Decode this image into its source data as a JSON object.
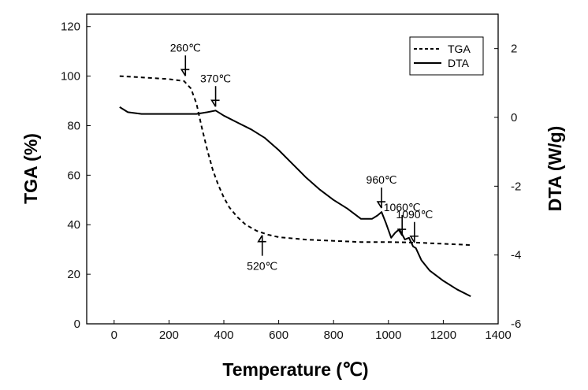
{
  "chart_data": {
    "type": "line",
    "xlabel": "Temperature (℃)",
    "ylabel_left": "TGA (%)",
    "ylabel_right": "DTA (W/g)",
    "xlim": [
      -100,
      1400
    ],
    "ylim_left": [
      0,
      125
    ],
    "ylim_right": [
      -6,
      3
    ],
    "x_ticks": [
      0,
      200,
      400,
      600,
      800,
      1000,
      1200,
      1400
    ],
    "y_left_ticks": [
      0,
      20,
      40,
      60,
      80,
      100,
      120
    ],
    "y_right_ticks": [
      -6,
      -4,
      -2,
      0,
      2
    ],
    "legend_position": "top-right",
    "series": [
      {
        "name": "TGA",
        "axis": "left",
        "style": "dashed",
        "x": [
          20,
          100,
          200,
          255,
          280,
          300,
          320,
          340,
          360,
          380,
          400,
          420,
          450,
          480,
          520,
          560,
          600,
          700,
          800,
          900,
          1000,
          1100,
          1200,
          1300
        ],
        "y": [
          100,
          99.5,
          98.8,
          98,
          95,
          89,
          79,
          70,
          62,
          56,
          51,
          47,
          43,
          40,
          37.5,
          36,
          35,
          34,
          33.5,
          33,
          33,
          32.8,
          32.3,
          31.8
        ]
      },
      {
        "name": "DTA",
        "axis": "right",
        "style": "solid",
        "x": [
          20,
          50,
          100,
          200,
          300,
          340,
          370,
          400,
          450,
          500,
          550,
          600,
          650,
          700,
          750,
          800,
          850,
          900,
          940,
          960,
          975,
          990,
          1010,
          1025,
          1040,
          1060,
          1075,
          1090,
          1100,
          1120,
          1150,
          1200,
          1250,
          1300
        ],
        "y": [
          0.3,
          0.15,
          0.1,
          0.1,
          0.1,
          0.15,
          0.2,
          0.05,
          -0.15,
          -0.35,
          -0.6,
          -0.95,
          -1.35,
          -1.75,
          -2.1,
          -2.4,
          -2.65,
          -2.95,
          -2.95,
          -2.85,
          -2.75,
          -3.05,
          -3.5,
          -3.35,
          -3.25,
          -3.55,
          -3.5,
          -3.75,
          -3.8,
          -4.15,
          -4.45,
          -4.75,
          -5.0,
          -5.2
        ]
      }
    ],
    "annotations": [
      {
        "text": "260℃",
        "x": 260,
        "axis": "left",
        "y": 98.5
      },
      {
        "text": "370℃",
        "x": 370,
        "axis": "right",
        "y": 0.2
      },
      {
        "text": "520℃",
        "x": 540,
        "axis": "left",
        "y": 37
      },
      {
        "text": "960℃",
        "x": 975,
        "axis": "right",
        "y": -2.75
      },
      {
        "text": "1060℃",
        "x": 1050,
        "axis": "right",
        "y": -3.55
      },
      {
        "text": "1090℃",
        "x": 1095,
        "axis": "right",
        "y": -3.75
      }
    ]
  }
}
